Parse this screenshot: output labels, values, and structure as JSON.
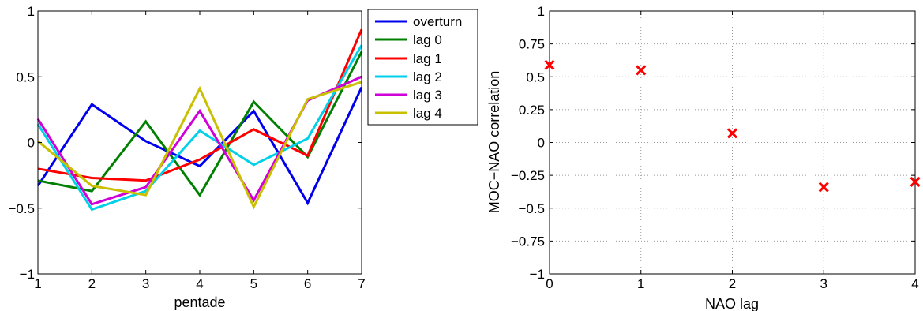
{
  "chart_data": [
    {
      "type": "line",
      "title": "",
      "xlabel": "pentade",
      "ylabel": "",
      "xlim": [
        1,
        7
      ],
      "ylim": [
        -1,
        1
      ],
      "xticks": [
        "1",
        "2",
        "3",
        "4",
        "5",
        "6",
        "7"
      ],
      "yticks": [
        "−1",
        "−0.5",
        "0",
        "0.5",
        "1"
      ],
      "ytick_values": [
        -1,
        -0.5,
        0,
        0.5,
        1
      ],
      "grid": false,
      "legend_position": "outside-top-right",
      "x": [
        1,
        2,
        3,
        4,
        5,
        6,
        7
      ],
      "series": [
        {
          "name": "overturn",
          "color": "#0000ee",
          "values": [
            -0.33,
            0.29,
            0.01,
            -0.18,
            0.24,
            -0.46,
            0.42
          ]
        },
        {
          "name": "lag 0",
          "color": "#008000",
          "values": [
            -0.29,
            -0.37,
            0.16,
            -0.4,
            0.31,
            -0.11,
            0.69
          ]
        },
        {
          "name": "lag 1",
          "color": "#ff0000",
          "values": [
            -0.2,
            -0.27,
            -0.29,
            -0.13,
            0.1,
            -0.1,
            0.86
          ]
        },
        {
          "name": "lag 2",
          "color": "#00d0e8",
          "values": [
            0.14,
            -0.51,
            -0.37,
            0.09,
            -0.17,
            0.03,
            0.74
          ]
        },
        {
          "name": "lag 3",
          "color": "#d000d8",
          "values": [
            0.18,
            -0.47,
            -0.34,
            0.24,
            -0.44,
            0.32,
            0.5
          ]
        },
        {
          "name": "lag 4",
          "color": "#c8c000",
          "values": [
            0.01,
            -0.33,
            -0.4,
            0.41,
            -0.49,
            0.33,
            0.46
          ]
        }
      ]
    },
    {
      "type": "scatter",
      "title": "",
      "xlabel": "NAO lag",
      "ylabel": "MOC−NAO correlation",
      "xlim": [
        0,
        4
      ],
      "ylim": [
        -1,
        1
      ],
      "xticks": [
        "0",
        "1",
        "2",
        "3",
        "4"
      ],
      "yticks": [
        "−1",
        "−0.75",
        "−0.5",
        "−0.25",
        "0",
        "0.25",
        "0.5",
        "0.75",
        "1"
      ],
      "ytick_values": [
        -1,
        -0.75,
        -0.5,
        -0.25,
        0,
        0.25,
        0.5,
        0.75,
        1
      ],
      "grid": true,
      "marker": "x",
      "color": "#ff0000",
      "x": [
        0,
        1,
        2,
        3,
        4
      ],
      "y": [
        0.59,
        0.55,
        0.07,
        -0.34,
        -0.3
      ]
    }
  ]
}
